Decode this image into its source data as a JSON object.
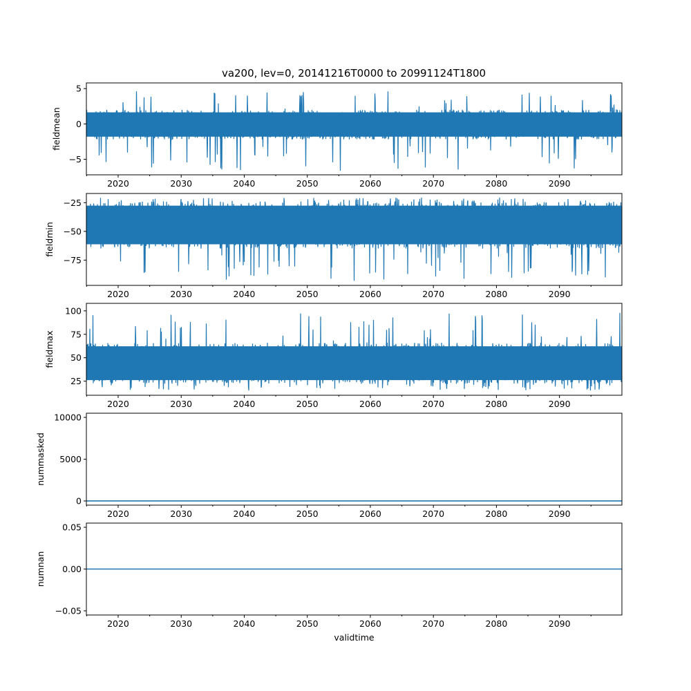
{
  "figure": {
    "title": "va200, lev=0, 20141216T0000 to 20991124T1800",
    "line_color": "#1f77b4"
  },
  "chart_data": [
    {
      "type": "line",
      "ylabel": "fieldmean",
      "xlabel": "",
      "xlim": [
        2014.96,
        2099.9
      ],
      "ylim": [
        -7.2,
        5.8
      ],
      "yticks": [
        5,
        0,
        -5
      ],
      "xticks": [
        2020,
        2030,
        2040,
        2050,
        2060,
        2070,
        2080,
        2090
      ],
      "xtick_labels": [
        "2020",
        "2030",
        "2040",
        "2050",
        "2060",
        "2070",
        "2080",
        "2090"
      ],
      "series": [
        {
          "center": 0.0,
          "band_low": -2.2,
          "band_high": 2.0,
          "min": -6.7,
          "max": 5.1,
          "values": []
        }
      ]
    },
    {
      "type": "line",
      "ylabel": "fieldmin",
      "xlabel": "",
      "xlim": [
        2014.96,
        2099.9
      ],
      "ylim": [
        -97,
        -17
      ],
      "yticks": [
        -25,
        -50,
        -75
      ],
      "xticks": [
        2020,
        2030,
        2040,
        2050,
        2060,
        2070,
        2080,
        2090
      ],
      "xtick_labels": [
        "2020",
        "2030",
        "2040",
        "2050",
        "2060",
        "2070",
        "2080",
        "2090"
      ],
      "series": [
        {
          "center": -44.0,
          "band_low": -65.0,
          "band_high": -24.0,
          "min": -93.0,
          "max": -20.0,
          "values": []
        }
      ]
    },
    {
      "type": "line",
      "ylabel": "fieldmax",
      "xlabel": "",
      "xlim": [
        2014.96,
        2099.9
      ],
      "ylim": [
        10,
        108
      ],
      "yticks": [
        100,
        75,
        50,
        25
      ],
      "xticks": [
        2020,
        2030,
        2040,
        2050,
        2060,
        2070,
        2080,
        2090
      ],
      "xtick_labels": [
        "2020",
        "2030",
        "2040",
        "2050",
        "2060",
        "2070",
        "2080",
        "2090"
      ],
      "series": [
        {
          "center": 45.0,
          "band_low": 22.0,
          "band_high": 66.0,
          "min": 15.0,
          "max": 104.0,
          "values": []
        }
      ]
    },
    {
      "type": "line",
      "ylabel": "nummasked",
      "xlabel": "",
      "xlim": [
        2014.96,
        2099.9
      ],
      "ylim": [
        -500,
        10500
      ],
      "yticks": [
        10000,
        5000,
        0
      ],
      "xticks": [
        2020,
        2030,
        2040,
        2050,
        2060,
        2070,
        2080,
        2090
      ],
      "xtick_labels": [
        "2020",
        "2030",
        "2040",
        "2050",
        "2060",
        "2070",
        "2080",
        "2090"
      ],
      "series": [
        {
          "constant": 0
        }
      ]
    },
    {
      "type": "line",
      "ylabel": "numnan",
      "xlabel": "validtime",
      "xlim": [
        2014.96,
        2099.9
      ],
      "ylim": [
        -0.055,
        0.055
      ],
      "yticks": [
        0.05,
        0.0,
        -0.05
      ],
      "ytick_labels": [
        "0.05",
        "0.00",
        "−0.05"
      ],
      "xticks": [
        2020,
        2030,
        2040,
        2050,
        2060,
        2070,
        2080,
        2090
      ],
      "xtick_labels": [
        "2020",
        "2030",
        "2040",
        "2050",
        "2060",
        "2070",
        "2080",
        "2090"
      ],
      "series": [
        {
          "constant": 0
        }
      ]
    }
  ]
}
